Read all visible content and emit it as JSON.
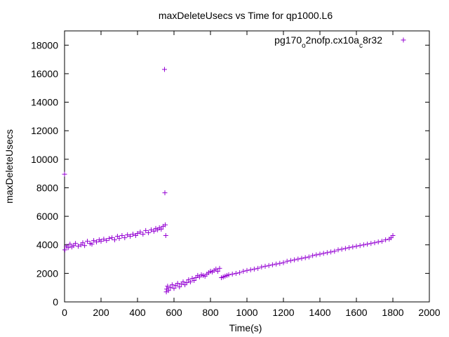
{
  "chart_data": {
    "type": "scatter",
    "title": "maxDeleteUsecs vs Time for qp1000.L6",
    "xlabel": "Time(s)",
    "ylabel": "maxDeleteUsecs",
    "xlim": [
      0,
      2000
    ],
    "ylim": [
      0,
      19000
    ],
    "xticks": [
      "0",
      "200",
      "400",
      "600",
      "800",
      "1000",
      "1200",
      "1400",
      "1600",
      "1800",
      "2000"
    ],
    "yticks": [
      "0",
      "2000",
      "4000",
      "6000",
      "8000",
      "10000",
      "12000",
      "14000",
      "16000",
      "18000"
    ],
    "grid": false,
    "legend_position": "top-right",
    "marker": "plus",
    "series": [
      {
        "name_main": "pg170",
        "name_sub1": "o",
        "name_mid": "2nofp.cx10a",
        "name_sub2": "c",
        "name_end": "8r32",
        "color": "#9400d3",
        "x": [
          0,
          2,
          10,
          20,
          30,
          40,
          50,
          60,
          75,
          90,
          100,
          110,
          125,
          140,
          150,
          160,
          175,
          190,
          200,
          215,
          230,
          245,
          260,
          275,
          290,
          300,
          315,
          330,
          345,
          360,
          375,
          390,
          400,
          415,
          430,
          445,
          460,
          475,
          490,
          500,
          510,
          520,
          530,
          540,
          548,
          550,
          552,
          555,
          558,
          560,
          565,
          570,
          580,
          590,
          600,
          610,
          620,
          630,
          640,
          650,
          660,
          670,
          680,
          690,
          700,
          710,
          720,
          730,
          740,
          750,
          760,
          770,
          780,
          790,
          800,
          810,
          820,
          830,
          840,
          850,
          860,
          870,
          880,
          890,
          900,
          920,
          940,
          960,
          980,
          1000,
          1020,
          1040,
          1060,
          1080,
          1100,
          1120,
          1140,
          1160,
          1180,
          1200,
          1220,
          1240,
          1260,
          1280,
          1300,
          1320,
          1340,
          1360,
          1380,
          1400,
          1420,
          1440,
          1460,
          1480,
          1500,
          1520,
          1540,
          1560,
          1580,
          1600,
          1620,
          1640,
          1660,
          1680,
          1700,
          1720,
          1740,
          1760,
          1780,
          1790,
          1800
        ],
        "y": [
          8950,
          3650,
          3900,
          3800,
          4050,
          3850,
          3950,
          4100,
          3900,
          4000,
          4150,
          3950,
          4250,
          4100,
          4050,
          4300,
          4200,
          4350,
          4250,
          4400,
          4300,
          4450,
          4500,
          4350,
          4600,
          4450,
          4650,
          4500,
          4700,
          4600,
          4750,
          4650,
          4800,
          4900,
          4750,
          5000,
          4850,
          5050,
          4950,
          5150,
          5050,
          5200,
          5100,
          5300,
          16300,
          7650,
          5400,
          4650,
          700,
          900,
          1100,
          800,
          1000,
          1200,
          950,
          1150,
          1300,
          1050,
          1250,
          1400,
          1200,
          1350,
          1550,
          1400,
          1650,
          1500,
          1700,
          1850,
          1750,
          1900,
          1850,
          1800,
          1950,
          2050,
          2150,
          2100,
          2200,
          2300,
          2150,
          2350,
          1700,
          1750,
          1800,
          1850,
          1900,
          1950,
          2000,
          2050,
          2150,
          2200,
          2250,
          2300,
          2350,
          2450,
          2500,
          2550,
          2600,
          2650,
          2700,
          2750,
          2850,
          2900,
          2950,
          3000,
          3050,
          3100,
          3150,
          3250,
          3300,
          3350,
          3400,
          3450,
          3500,
          3550,
          3650,
          3700,
          3750,
          3800,
          3850,
          3900,
          3950,
          4000,
          4050,
          4100,
          4150,
          4200,
          4250,
          4350,
          4400,
          4500,
          4650
        ]
      }
    ]
  }
}
